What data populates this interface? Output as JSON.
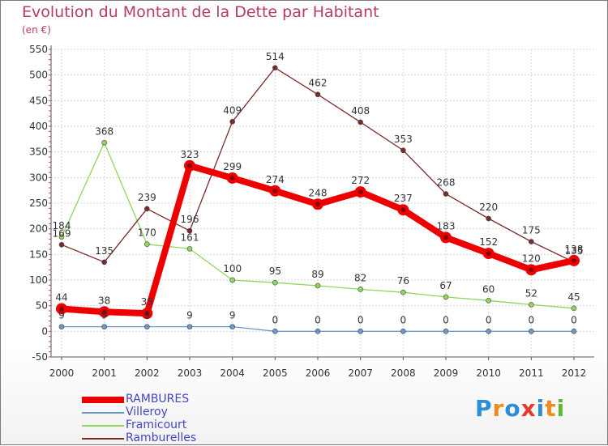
{
  "title": "Evolution du Montant de la Dette par Habitant",
  "subtitle": "(en €)",
  "logo": {
    "letters": [
      "P",
      "r",
      "o",
      "x",
      "i",
      "t",
      "i"
    ],
    "colors": [
      "#2c8fd6",
      "#f08a1c",
      "#2c8fd6",
      "#e53a2c",
      "#2c8fd6",
      "#f08a1c",
      "#5cb83c"
    ]
  },
  "chart_data": {
    "type": "line",
    "title": "Evolution du Montant de la Dette par Habitant",
    "ylabel": "(en €)",
    "xlabel": "",
    "ylim": [
      -50,
      550
    ],
    "yticks": [
      -50,
      0,
      50,
      100,
      150,
      200,
      250,
      300,
      350,
      400,
      450,
      500,
      550
    ],
    "x": [
      "2000",
      "2001",
      "2002",
      "2003",
      "2004",
      "2005",
      "2006",
      "2007",
      "2008",
      "2009",
      "2010",
      "2011",
      "2012"
    ],
    "grid": true,
    "legend": "bottom-left",
    "series": [
      {
        "name": "Framicourt",
        "color": "#8fd65a",
        "values": [
          184,
          368,
          170,
          161,
          100,
          95,
          89,
          82,
          76,
          67,
          60,
          52,
          45
        ]
      },
      {
        "name": "Ramburelles",
        "color": "#7a2a2a",
        "values": [
          169,
          135,
          239,
          196,
          409,
          514,
          462,
          408,
          353,
          268,
          220,
          175,
          135
        ]
      },
      {
        "name": "Villeroy",
        "color": "#6a9ac8",
        "values": [
          9,
          9,
          9,
          9,
          9,
          0,
          0,
          0,
          0,
          0,
          0,
          0,
          0
        ]
      },
      {
        "name": "RAMBURES",
        "color": "#ee0000",
        "values": [
          44,
          38,
          35,
          323,
          299,
          274,
          248,
          272,
          237,
          183,
          152,
          120,
          138
        ]
      }
    ],
    "legend_order": [
      "RAMBURES",
      "Villeroy",
      "Framicourt",
      "Ramburelles"
    ]
  }
}
